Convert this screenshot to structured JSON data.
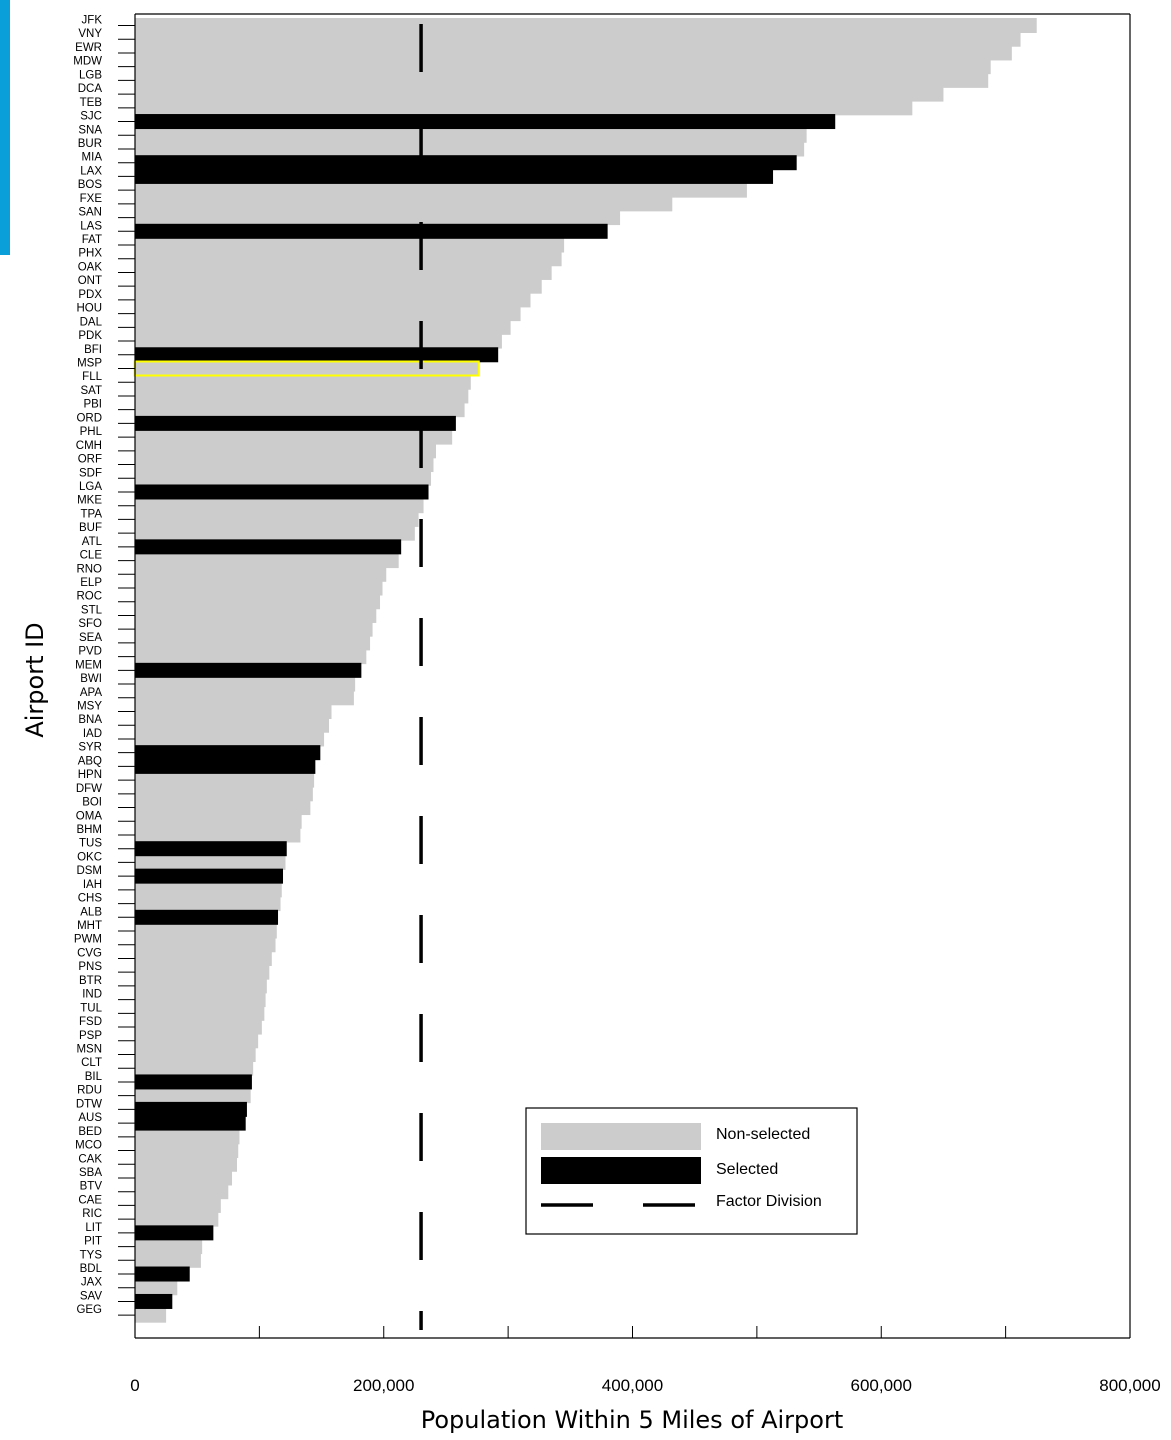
{
  "chart_data": {
    "type": "bar",
    "orientation": "horizontal",
    "xlabel": "Population Within 5 Miles of Airport",
    "ylabel": "Airport ID",
    "xlim": [
      0,
      800000
    ],
    "xticks": [
      0,
      200000,
      400000,
      600000,
      800000
    ],
    "xtick_labels": [
      "0",
      "200,000",
      "400,000",
      "600,000",
      "800,000"
    ],
    "factor_division": 230000,
    "legend": {
      "placement": "lower-right",
      "non_selected": "Non-selected",
      "selected": "Selected",
      "factor_division": "Factor Division"
    },
    "colors": {
      "non_selected": "#cccccc",
      "selected": "#000000",
      "highlight": "#ffff00"
    },
    "highlighted": "MSP",
    "bars": [
      {
        "id": "JFK",
        "value": 725000,
        "selected": false
      },
      {
        "id": "VNY",
        "value": 712000,
        "selected": false
      },
      {
        "id": "EWR",
        "value": 705000,
        "selected": false
      },
      {
        "id": "MDW",
        "value": 688000,
        "selected": false
      },
      {
        "id": "LGB",
        "value": 686000,
        "selected": false
      },
      {
        "id": "DCA",
        "value": 650000,
        "selected": false
      },
      {
        "id": "TEB",
        "value": 625000,
        "selected": false
      },
      {
        "id": "SJC",
        "value": 563000,
        "selected": true
      },
      {
        "id": "SNA",
        "value": 540000,
        "selected": false
      },
      {
        "id": "BUR",
        "value": 538000,
        "selected": false
      },
      {
        "id": "MIA",
        "value": 532000,
        "selected": true
      },
      {
        "id": "LAX",
        "value": 513000,
        "selected": true
      },
      {
        "id": "BOS",
        "value": 492000,
        "selected": false
      },
      {
        "id": "FXE",
        "value": 432000,
        "selected": false
      },
      {
        "id": "SAN",
        "value": 390000,
        "selected": false
      },
      {
        "id": "LAS",
        "value": 380000,
        "selected": true
      },
      {
        "id": "FAT",
        "value": 345000,
        "selected": false
      },
      {
        "id": "PHX",
        "value": 343000,
        "selected": false
      },
      {
        "id": "OAK",
        "value": 335000,
        "selected": false
      },
      {
        "id": "ONT",
        "value": 327000,
        "selected": false
      },
      {
        "id": "PDX",
        "value": 318000,
        "selected": false
      },
      {
        "id": "HOU",
        "value": 310000,
        "selected": false
      },
      {
        "id": "DAL",
        "value": 302000,
        "selected": false
      },
      {
        "id": "PDK",
        "value": 295000,
        "selected": false
      },
      {
        "id": "BFI",
        "value": 292000,
        "selected": true
      },
      {
        "id": "MSP",
        "value": 276000,
        "selected": false
      },
      {
        "id": "FLL",
        "value": 270000,
        "selected": false
      },
      {
        "id": "SAT",
        "value": 268000,
        "selected": false
      },
      {
        "id": "PBI",
        "value": 265000,
        "selected": false
      },
      {
        "id": "ORD",
        "value": 258000,
        "selected": true
      },
      {
        "id": "PHL",
        "value": 255000,
        "selected": false
      },
      {
        "id": "CMH",
        "value": 242000,
        "selected": false
      },
      {
        "id": "ORF",
        "value": 240000,
        "selected": false
      },
      {
        "id": "SDF",
        "value": 238000,
        "selected": false
      },
      {
        "id": "LGA",
        "value": 236000,
        "selected": true
      },
      {
        "id": "MKE",
        "value": 232000,
        "selected": false
      },
      {
        "id": "TPA",
        "value": 228000,
        "selected": false
      },
      {
        "id": "BUF",
        "value": 225000,
        "selected": false
      },
      {
        "id": "ATL",
        "value": 214000,
        "selected": true
      },
      {
        "id": "CLE",
        "value": 212000,
        "selected": false
      },
      {
        "id": "RNO",
        "value": 202000,
        "selected": false
      },
      {
        "id": "ELP",
        "value": 199000,
        "selected": false
      },
      {
        "id": "ROC",
        "value": 197000,
        "selected": false
      },
      {
        "id": "STL",
        "value": 194000,
        "selected": false
      },
      {
        "id": "SFO",
        "value": 191000,
        "selected": false
      },
      {
        "id": "SEA",
        "value": 189000,
        "selected": false
      },
      {
        "id": "PVD",
        "value": 186000,
        "selected": false
      },
      {
        "id": "MEM",
        "value": 182000,
        "selected": true
      },
      {
        "id": "BWI",
        "value": 177000,
        "selected": false
      },
      {
        "id": "APA",
        "value": 176000,
        "selected": false
      },
      {
        "id": "MSY",
        "value": 158000,
        "selected": false
      },
      {
        "id": "BNA",
        "value": 156000,
        "selected": false
      },
      {
        "id": "IAD",
        "value": 152000,
        "selected": false
      },
      {
        "id": "SYR",
        "value": 149000,
        "selected": true
      },
      {
        "id": "ABQ",
        "value": 145000,
        "selected": true
      },
      {
        "id": "HPN",
        "value": 144000,
        "selected": false
      },
      {
        "id": "DFW",
        "value": 143000,
        "selected": false
      },
      {
        "id": "BOI",
        "value": 141000,
        "selected": false
      },
      {
        "id": "OMA",
        "value": 134000,
        "selected": false
      },
      {
        "id": "BHM",
        "value": 133000,
        "selected": false
      },
      {
        "id": "TUS",
        "value": 122000,
        "selected": true
      },
      {
        "id": "OKC",
        "value": 121000,
        "selected": false
      },
      {
        "id": "DSM",
        "value": 119000,
        "selected": true
      },
      {
        "id": "IAH",
        "value": 118000,
        "selected": false
      },
      {
        "id": "CHS",
        "value": 117000,
        "selected": false
      },
      {
        "id": "ALB",
        "value": 115000,
        "selected": true
      },
      {
        "id": "MHT",
        "value": 114000,
        "selected": false
      },
      {
        "id": "PWM",
        "value": 113000,
        "selected": false
      },
      {
        "id": "CVG",
        "value": 110000,
        "selected": false
      },
      {
        "id": "PNS",
        "value": 108000,
        "selected": false
      },
      {
        "id": "BTR",
        "value": 106000,
        "selected": false
      },
      {
        "id": "IND",
        "value": 105000,
        "selected": false
      },
      {
        "id": "TUL",
        "value": 104000,
        "selected": false
      },
      {
        "id": "FSD",
        "value": 102000,
        "selected": false
      },
      {
        "id": "PSP",
        "value": 99000,
        "selected": false
      },
      {
        "id": "MSN",
        "value": 97000,
        "selected": false
      },
      {
        "id": "CLT",
        "value": 95000,
        "selected": false
      },
      {
        "id": "BIL",
        "value": 94000,
        "selected": true
      },
      {
        "id": "RDU",
        "value": 93000,
        "selected": false
      },
      {
        "id": "DTW",
        "value": 90000,
        "selected": true
      },
      {
        "id": "AUS",
        "value": 89000,
        "selected": true
      },
      {
        "id": "BED",
        "value": 84000,
        "selected": false
      },
      {
        "id": "MCO",
        "value": 83000,
        "selected": false
      },
      {
        "id": "CAK",
        "value": 82000,
        "selected": false
      },
      {
        "id": "SBA",
        "value": 78000,
        "selected": false
      },
      {
        "id": "BTV",
        "value": 75000,
        "selected": false
      },
      {
        "id": "CAE",
        "value": 69000,
        "selected": false
      },
      {
        "id": "RIC",
        "value": 67000,
        "selected": false
      },
      {
        "id": "LIT",
        "value": 63000,
        "selected": true
      },
      {
        "id": "PIT",
        "value": 54000,
        "selected": false
      },
      {
        "id": "TYS",
        "value": 53000,
        "selected": false
      },
      {
        "id": "BDL",
        "value": 44000,
        "selected": true
      },
      {
        "id": "JAX",
        "value": 34000,
        "selected": false
      },
      {
        "id": "SAV",
        "value": 30000,
        "selected": true
      },
      {
        "id": "GEG",
        "value": 25000,
        "selected": false
      }
    ]
  }
}
